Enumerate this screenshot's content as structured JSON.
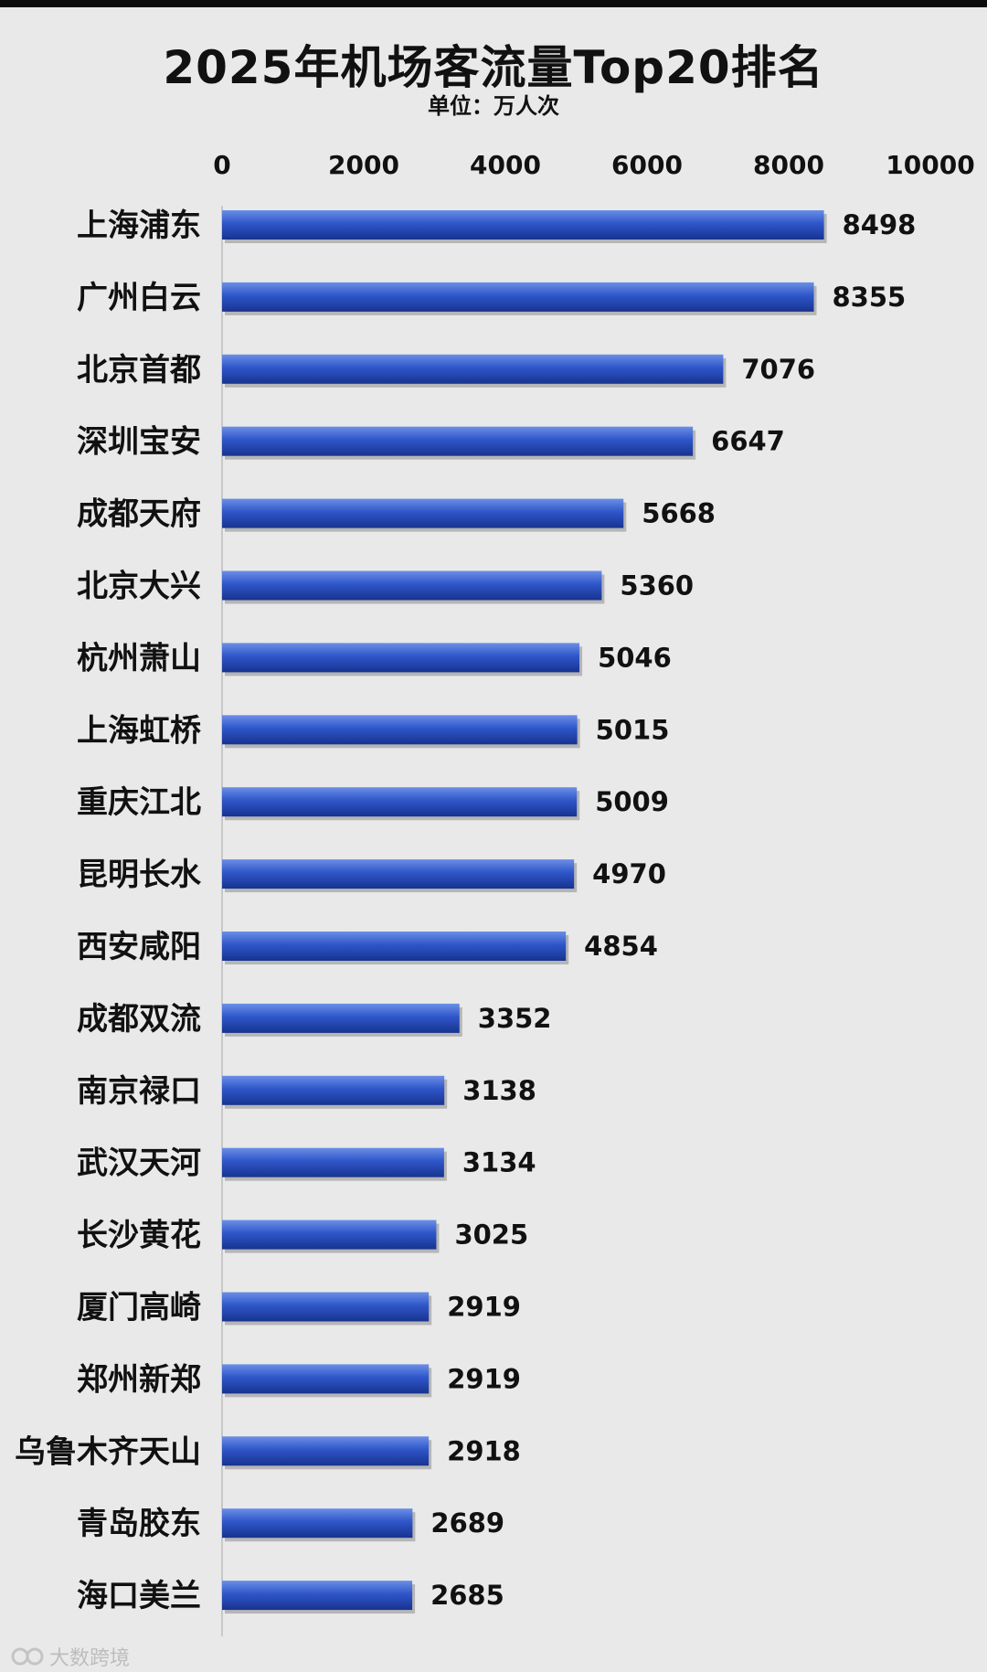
{
  "title": "2025年机场客流量Top20排名",
  "unit_label": "单位：万人次",
  "watermark_text": "大数跨境",
  "colors": {
    "bar_top": "#6b8fe6",
    "bar_mid": "#2f56c9",
    "bar_bottom": "#17338f",
    "axis": "#c8c8c8",
    "text": "#111111"
  },
  "chart_data": {
    "type": "bar",
    "orientation": "horizontal",
    "title": "2025年机场客流量Top20排名",
    "unit": "单位：万人次",
    "xlim": [
      0,
      10000
    ],
    "x_ticks": [
      "0",
      "2000",
      "4000",
      "6000",
      "8000",
      "10000"
    ],
    "tick_values": [
      0,
      2000,
      4000,
      6000,
      8000,
      10000
    ],
    "grid": false,
    "categories": [
      "上海浦东",
      "广州白云",
      "北京首都",
      "深圳宝安",
      "成都天府",
      "北京大兴",
      "杭州萧山",
      "上海虹桥",
      "重庆江北",
      "昆明长水",
      "西安咸阳",
      "成都双流",
      "南京禄口",
      "武汉天河",
      "长沙黄花",
      "厦门高崎",
      "郑州新郑",
      "乌鲁木齐天山",
      "青岛胶东",
      "海口美兰"
    ],
    "values": [
      8498,
      8355,
      7076,
      6647,
      5668,
      5360,
      5046,
      5015,
      5009,
      4970,
      4854,
      3352,
      3138,
      3134,
      3025,
      2919,
      2919,
      2918,
      2689,
      2685
    ],
    "value_labels": [
      "8498",
      "8355",
      "7076",
      "6647",
      "5668",
      "5360",
      "5046",
      "5015",
      "5009",
      "4970",
      "4854",
      "3352",
      "3138",
      "3134",
      "3025",
      "2919",
      "2919",
      "2918",
      "2689",
      "2685"
    ]
  }
}
